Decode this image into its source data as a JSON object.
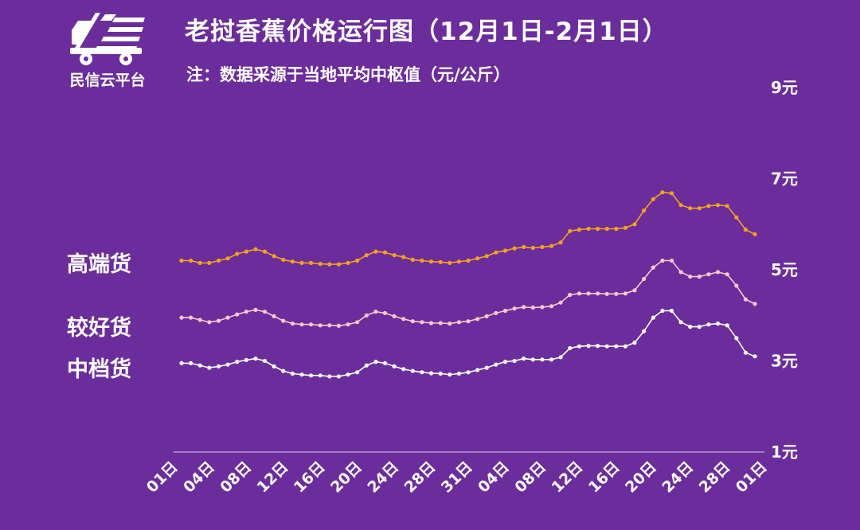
{
  "header": {
    "title": "老挝香蕉价格运行图（12月1日-2月1日）",
    "subtitle": "注：数据采源于当地平均中枢值（元/公斤）"
  },
  "logo": {
    "text": "民信云平台",
    "icon": "truck-icon"
  },
  "colors": {
    "background": "#6b2d9c",
    "high": "#f3a21c",
    "mid": "#f6c9c9",
    "low": "#ffffff",
    "axis": "#d9c8ec"
  },
  "chart_data": {
    "type": "line",
    "title": "老挝香蕉价格运行图（12月1日-2月1日）",
    "subtitle": "注：数据采源于当地平均中枢值（元/公斤）",
    "ylim": [
      1,
      9
    ],
    "y_ticks": [
      {
        "value": 9,
        "label": "9元"
      },
      {
        "value": 7,
        "label": "7元"
      },
      {
        "value": 5,
        "label": "5元"
      },
      {
        "value": 3,
        "label": "3元"
      },
      {
        "value": 1,
        "label": "1元"
      }
    ],
    "x_tick_labels": [
      "01日",
      "04日",
      "08日",
      "12日",
      "16日",
      "20日",
      "24日",
      "28日",
      "31日",
      "04日",
      "08日",
      "12日",
      "16日",
      "20日",
      "24日",
      "28日",
      "01日"
    ],
    "grid": false,
    "series": [
      {
        "name": "高端货",
        "color": "#f3a21c",
        "values": [
          5.2,
          5.2,
          5.15,
          5.15,
          5.2,
          5.25,
          5.35,
          5.4,
          5.45,
          5.4,
          5.3,
          5.22,
          5.18,
          5.15,
          5.15,
          5.13,
          5.12,
          5.12,
          5.15,
          5.2,
          5.32,
          5.4,
          5.38,
          5.32,
          5.28,
          5.22,
          5.2,
          5.18,
          5.17,
          5.15,
          5.18,
          5.2,
          5.25,
          5.3,
          5.38,
          5.42,
          5.47,
          5.5,
          5.48,
          5.5,
          5.52,
          5.6,
          5.85,
          5.88,
          5.9,
          5.9,
          5.9,
          5.9,
          5.92,
          6.0,
          6.3,
          6.55,
          6.7,
          6.68,
          6.42,
          6.35,
          6.35,
          6.4,
          6.42,
          6.4,
          6.15,
          5.88,
          5.78
        ]
      },
      {
        "name": "较好货",
        "color": "#f6c9c9",
        "values": [
          3.95,
          3.95,
          3.9,
          3.85,
          3.88,
          3.95,
          4.02,
          4.08,
          4.12,
          4.08,
          3.98,
          3.88,
          3.82,
          3.8,
          3.8,
          3.78,
          3.78,
          3.77,
          3.8,
          3.85,
          4.0,
          4.08,
          4.05,
          3.98,
          3.92,
          3.87,
          3.85,
          3.83,
          3.83,
          3.82,
          3.85,
          3.87,
          3.92,
          3.98,
          4.05,
          4.1,
          4.15,
          4.18,
          4.17,
          4.18,
          4.2,
          4.28,
          4.45,
          4.48,
          4.48,
          4.48,
          4.47,
          4.47,
          4.48,
          4.55,
          4.8,
          5.05,
          5.2,
          5.2,
          4.95,
          4.85,
          4.85,
          4.9,
          4.95,
          4.9,
          4.65,
          4.35,
          4.25
        ]
      },
      {
        "name": "中档货",
        "color": "#ffffff",
        "values": [
          2.95,
          2.95,
          2.9,
          2.85,
          2.88,
          2.92,
          2.98,
          3.02,
          3.05,
          3.0,
          2.88,
          2.78,
          2.72,
          2.7,
          2.68,
          2.68,
          2.66,
          2.66,
          2.7,
          2.75,
          2.9,
          2.98,
          2.95,
          2.88,
          2.82,
          2.78,
          2.75,
          2.73,
          2.72,
          2.7,
          2.72,
          2.75,
          2.8,
          2.85,
          2.92,
          2.98,
          3.0,
          3.05,
          3.03,
          3.03,
          3.03,
          3.08,
          3.28,
          3.32,
          3.33,
          3.33,
          3.32,
          3.32,
          3.32,
          3.4,
          3.65,
          3.95,
          4.1,
          4.1,
          3.85,
          3.75,
          3.75,
          3.8,
          3.82,
          3.78,
          3.5,
          3.18,
          3.1
        ]
      }
    ]
  }
}
